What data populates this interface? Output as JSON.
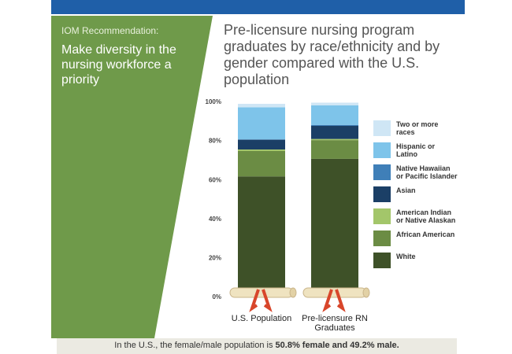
{
  "header": {
    "iom_label": "IOM Recommendation:",
    "recommendation": "Make diversity in the nursing workforce a priority"
  },
  "chart_data": {
    "type": "bar",
    "stacked": true,
    "title": "Pre-licensure nursing program graduates by race/ethnicity and by gender compared with the U.S. population",
    "categories": [
      "U.S. Population",
      "Pre-licensure RN Graduates"
    ],
    "series": [
      {
        "name": "White",
        "color": "#3e5128",
        "values": [
          62,
          71
        ]
      },
      {
        "name": "African American",
        "color": "#6b8c44",
        "values": [
          13,
          9.6
        ]
      },
      {
        "name": "American Indian or Native Alaskan",
        "color": "#a3c66a",
        "values": [
          0.8,
          0.6
        ]
      },
      {
        "name": "Asian",
        "color": "#1b3f66",
        "values": [
          5,
          6.7
        ]
      },
      {
        "name": "Native Hawaiian or Pacific Islander",
        "color": "#3f7fb8",
        "values": [
          0.2,
          0.5
        ]
      },
      {
        "name": "Hispanic or Latino",
        "color": "#7ec4ea",
        "values": [
          16.4,
          10
        ]
      },
      {
        "name": "Two or more races",
        "color": "#cfe6f5",
        "values": [
          1.8,
          1.4
        ]
      }
    ],
    "ylim": [
      0,
      100
    ],
    "yticks": [
      {
        "value": 0,
        "label": "0%"
      },
      {
        "value": 20,
        "label": "20%"
      },
      {
        "value": 40,
        "label": "40%"
      },
      {
        "value": 60,
        "label": "60%"
      },
      {
        "value": 80,
        "label": "80%"
      },
      {
        "value": 100,
        "label": "100%"
      }
    ]
  },
  "note": {
    "text": "In the U.S., the female/male population is",
    "bold": "50.8% female and 49.2% male."
  }
}
